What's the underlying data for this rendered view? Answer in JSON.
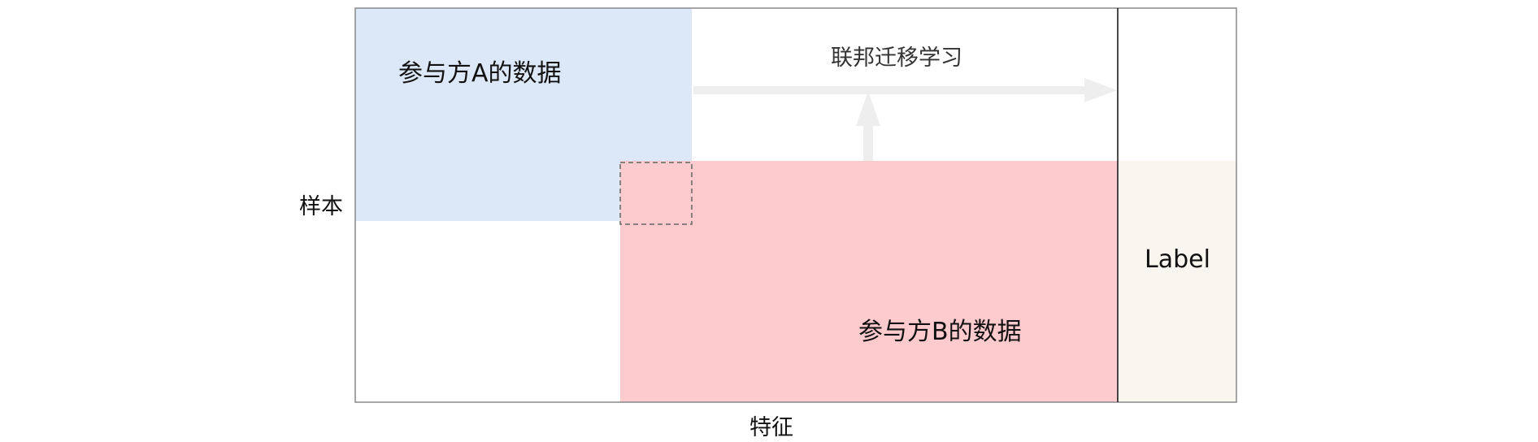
{
  "party_a": {
    "text": "参与方A的数据",
    "color": "#dce8f8"
  },
  "party_b": {
    "text": "参与方B的数据",
    "color": "#fdcacd"
  },
  "label_col": {
    "text": "Label",
    "color": "#f8f6ef"
  },
  "transfer": {
    "text": "联邦迁移学习",
    "arrow_color": "#eeeeee"
  },
  "axes": {
    "y": "样本",
    "x": "特征"
  },
  "colors": {
    "frame": "#888888",
    "divider": "#111111",
    "overlap_border": "#666666"
  }
}
